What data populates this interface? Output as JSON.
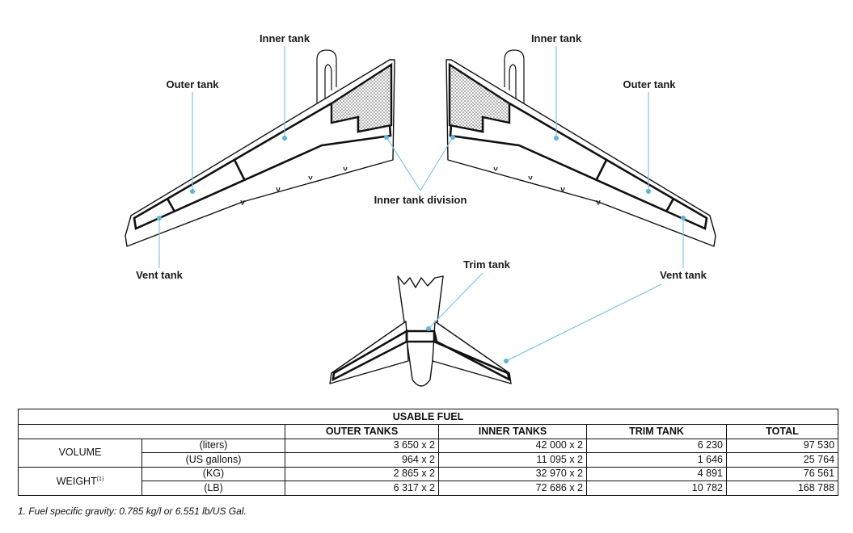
{
  "labels": {
    "inner_tank_left": "Inner tank",
    "inner_tank_right": "Inner tank",
    "outer_tank_left": "Outer tank",
    "outer_tank_right": "Outer tank",
    "vent_tank_left": "Vent tank",
    "vent_tank_right": "Vent tank",
    "inner_tank_division": "Inner tank division",
    "trim_tank": "Trim tank"
  },
  "colors": {
    "leader_line": "#7ec4e6",
    "leader_dot": "#5fb3e0",
    "outline": "#111111"
  },
  "table": {
    "title": "USABLE FUEL",
    "headers": [
      "OUTER TANKS",
      "INNER TANKS",
      "TRIM TANK",
      "TOTAL"
    ],
    "volume_label": "VOLUME",
    "weight_label": "WEIGHT",
    "weight_note_ref": "(1)",
    "rows": [
      {
        "unit": "(liters)",
        "outer": "3 650 x 2",
        "inner": "42 000 x 2",
        "trim": "6 230",
        "total": "97 530"
      },
      {
        "unit": "(US gallons)",
        "outer": "964 x 2",
        "inner": "11 095 x 2",
        "trim": "1 646",
        "total": "25 764"
      },
      {
        "unit": "(KG)",
        "outer": "2 865 x 2",
        "inner": "32 970 x 2",
        "trim": "4 891",
        "total": "76 561"
      },
      {
        "unit": "(LB)",
        "outer": "6 317 x 2",
        "inner": "72 686 x 2",
        "trim": "10 782",
        "total": "168 788"
      }
    ]
  },
  "footnote": "1.  Fuel specific gravity: 0.785 kg/l or 6.551 lb/US Gal."
}
